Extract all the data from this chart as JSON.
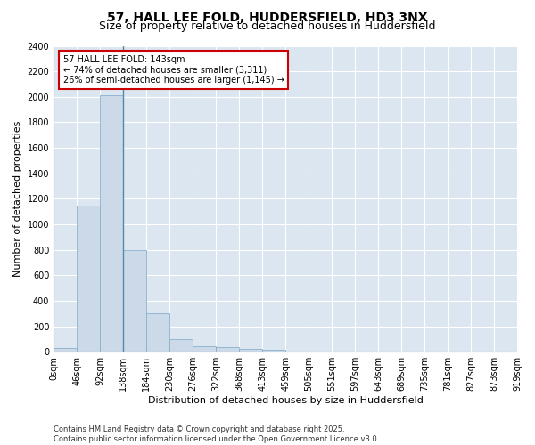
{
  "title_line1": "57, HALL LEE FOLD, HUDDERSFIELD, HD3 3NX",
  "title_line2": "Size of property relative to detached houses in Huddersfield",
  "xlabel": "Distribution of detached houses by size in Huddersfield",
  "ylabel": "Number of detached properties",
  "bar_color": "#ccd9e8",
  "bar_edge_color": "#8ab0cc",
  "plot_bg_color": "#dce6f0",
  "fig_bg_color": "#ffffff",
  "annotation_text": "57 HALL LEE FOLD: 143sqm\n← 74% of detached houses are smaller (3,311)\n26% of semi-detached houses are larger (1,145) →",
  "annotation_box_facecolor": "#ffffff",
  "annotation_box_edgecolor": "#cc0000",
  "footer_line1": "Contains HM Land Registry data © Crown copyright and database right 2025.",
  "footer_line2": "Contains public sector information licensed under the Open Government Licence v3.0.",
  "bin_labels": [
    "0sqm",
    "46sqm",
    "92sqm",
    "138sqm",
    "184sqm",
    "230sqm",
    "276sqm",
    "322sqm",
    "368sqm",
    "413sqm",
    "459sqm",
    "505sqm",
    "551sqm",
    "597sqm",
    "643sqm",
    "689sqm",
    "735sqm",
    "781sqm",
    "827sqm",
    "873sqm",
    "919sqm"
  ],
  "bar_heights": [
    30,
    1150,
    2010,
    800,
    300,
    100,
    45,
    35,
    20,
    12,
    0,
    0,
    0,
    0,
    0,
    0,
    0,
    0,
    0,
    0
  ],
  "ylim": [
    0,
    2400
  ],
  "yticks": [
    0,
    200,
    400,
    600,
    800,
    1000,
    1200,
    1400,
    1600,
    1800,
    2000,
    2200,
    2400
  ],
  "vline_x": 3.0,
  "grid_color": "#ffffff",
  "title_fontsize": 10,
  "subtitle_fontsize": 9,
  "axis_label_fontsize": 8,
  "tick_fontsize": 7,
  "footer_fontsize": 6,
  "annotation_fontsize": 7
}
